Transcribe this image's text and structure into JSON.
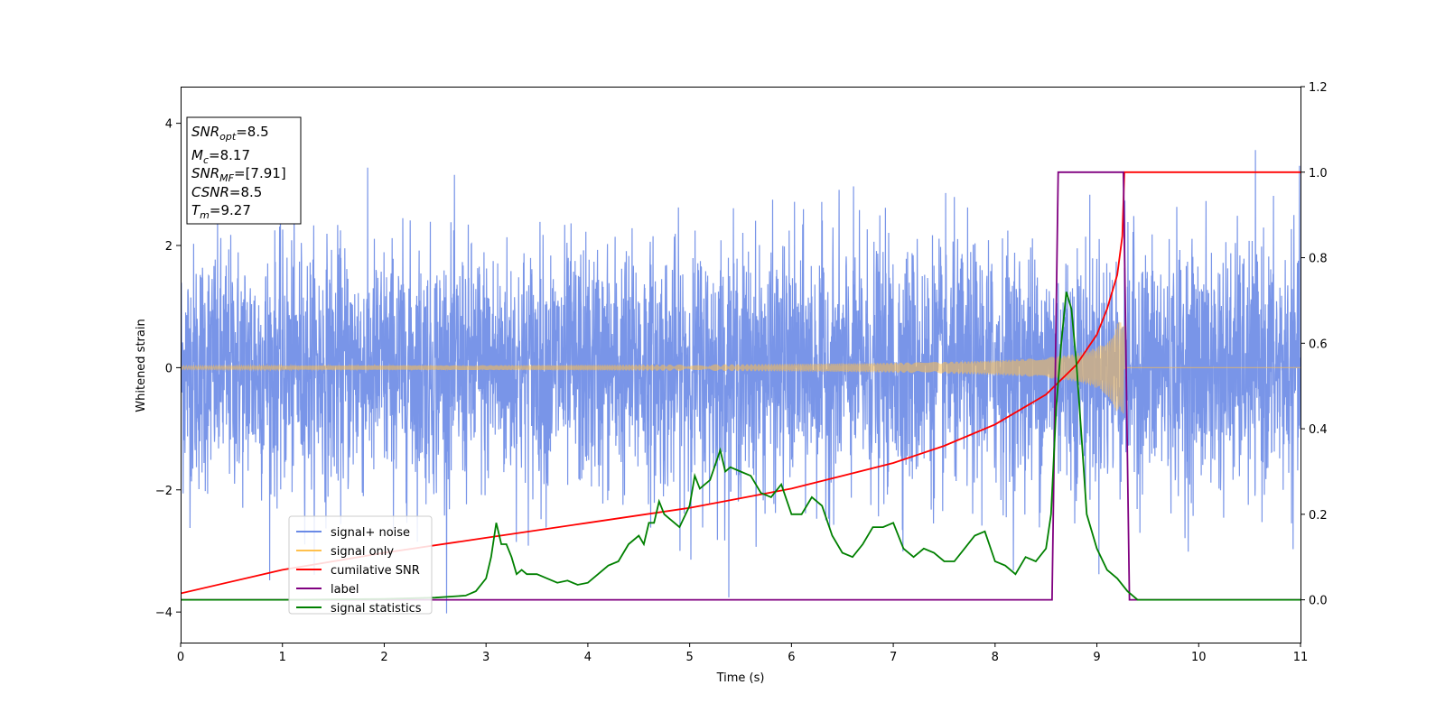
{
  "chart_data": {
    "type": "line",
    "xlabel": "Time (s)",
    "ylabel": "Whitened strain",
    "xlim": [
      0,
      11
    ],
    "ylim": [
      -4.5,
      4.6
    ],
    "y2lim": [
      -0.1,
      1.2
    ],
    "x_ticks": [
      "0",
      "1",
      "2",
      "3",
      "4",
      "5",
      "6",
      "7",
      "8",
      "9",
      "10",
      "11"
    ],
    "y_ticks": [
      "4",
      "2",
      "0",
      "−2",
      "−4"
    ],
    "y2_ticks": [
      "1.2",
      "1.0",
      "0.8",
      "0.6",
      "0.4",
      "0.2",
      "0.0"
    ],
    "grid": false,
    "legend_position": "lower-left",
    "info_box": {
      "snr_opt": {
        "main": "SNR",
        "sub": "opt",
        "value": "=8.5"
      },
      "mc": {
        "main": "M",
        "sub": "c",
        "value": "=8.17"
      },
      "snr_mf": {
        "main": "SNR",
        "sub": "MF",
        "value": "=[7.91]"
      },
      "csnr": {
        "main": "CSNR",
        "value": "=8.5"
      },
      "tm": {
        "main": "T",
        "sub": "m",
        "value": "=9.27"
      }
    },
    "series": [
      {
        "name": "signal+ noise",
        "color": "#6a8ae6",
        "axis": "left",
        "note_std": 1.0,
        "x_range": [
          0,
          11
        ]
      },
      {
        "name": "signal only",
        "color": "#ffc04d",
        "axis": "left",
        "chirp_amplitude_start": 0.03,
        "chirp_amplitude_end": 0.75,
        "chirp_end_time": 9.27
      },
      {
        "name": "cumilative SNR",
        "color": "#ff0000",
        "axis": "right",
        "x": [
          0,
          1,
          2,
          3,
          4,
          5,
          6,
          6.5,
          7,
          7.5,
          8,
          8.5,
          8.8,
          9.0,
          9.1,
          9.2,
          9.25,
          9.27,
          9.3,
          11
        ],
        "y": [
          0.015,
          0.07,
          0.11,
          0.145,
          0.18,
          0.215,
          0.26,
          0.29,
          0.32,
          0.36,
          0.41,
          0.48,
          0.55,
          0.62,
          0.68,
          0.76,
          0.85,
          1.0,
          1.0,
          1.0
        ]
      },
      {
        "name": "label",
        "color": "#800080",
        "axis": "right",
        "x": [
          0,
          8.56,
          8.62,
          9.26,
          9.32,
          11
        ],
        "y": [
          0,
          0,
          1,
          1,
          0,
          0
        ]
      },
      {
        "name": "signal statistics",
        "color": "#008000",
        "axis": "right",
        "x": [
          0,
          1,
          2,
          2.5,
          2.8,
          2.9,
          3.0,
          3.05,
          3.1,
          3.15,
          3.2,
          3.25,
          3.3,
          3.35,
          3.4,
          3.5,
          3.6,
          3.7,
          3.8,
          3.9,
          4.0,
          4.1,
          4.2,
          4.3,
          4.4,
          4.5,
          4.55,
          4.6,
          4.65,
          4.7,
          4.75,
          4.8,
          4.9,
          5.0,
          5.05,
          5.1,
          5.15,
          5.2,
          5.3,
          5.35,
          5.4,
          5.5,
          5.6,
          5.7,
          5.8,
          5.9,
          6.0,
          6.1,
          6.2,
          6.3,
          6.4,
          6.5,
          6.6,
          6.7,
          6.8,
          6.9,
          7.0,
          7.1,
          7.2,
          7.3,
          7.4,
          7.5,
          7.6,
          7.7,
          7.8,
          7.9,
          8.0,
          8.1,
          8.2,
          8.3,
          8.4,
          8.5,
          8.55,
          8.6,
          8.65,
          8.7,
          8.75,
          8.8,
          8.85,
          8.9,
          9.0,
          9.1,
          9.2,
          9.3,
          9.4,
          11
        ],
        "y": [
          0.0,
          0.0,
          0.002,
          0.005,
          0.01,
          0.02,
          0.05,
          0.1,
          0.18,
          0.13,
          0.13,
          0.1,
          0.06,
          0.07,
          0.06,
          0.06,
          0.05,
          0.04,
          0.045,
          0.035,
          0.04,
          0.06,
          0.08,
          0.09,
          0.13,
          0.15,
          0.13,
          0.18,
          0.18,
          0.23,
          0.2,
          0.19,
          0.17,
          0.22,
          0.29,
          0.26,
          0.27,
          0.28,
          0.35,
          0.3,
          0.31,
          0.3,
          0.29,
          0.25,
          0.24,
          0.27,
          0.2,
          0.2,
          0.24,
          0.22,
          0.15,
          0.11,
          0.1,
          0.13,
          0.17,
          0.17,
          0.18,
          0.12,
          0.1,
          0.12,
          0.11,
          0.09,
          0.09,
          0.12,
          0.15,
          0.16,
          0.09,
          0.08,
          0.06,
          0.1,
          0.09,
          0.12,
          0.2,
          0.45,
          0.6,
          0.72,
          0.68,
          0.55,
          0.38,
          0.2,
          0.12,
          0.07,
          0.05,
          0.02,
          0.0,
          0.0
        ]
      }
    ],
    "legend": [
      {
        "label": "signal+ noise",
        "color": "#6a8ae6"
      },
      {
        "label": "signal only",
        "color": "#ffc04d"
      },
      {
        "label": "cumilative SNR",
        "color": "#ff0000"
      },
      {
        "label": "label",
        "color": "#800080"
      },
      {
        "label": "signal statistics",
        "color": "#008000"
      }
    ]
  }
}
